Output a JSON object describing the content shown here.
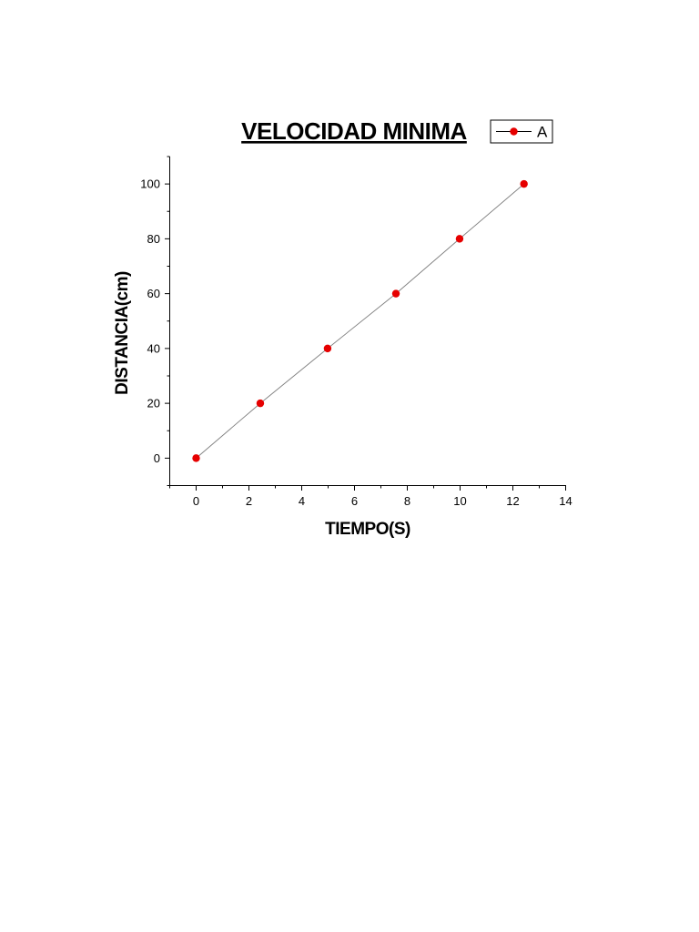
{
  "chart_data": {
    "type": "line",
    "title": "VELOCIDAD MINIMA",
    "xlabel": "TIEMPO(S)",
    "ylabel": "DISTANCIA(cm)",
    "xlim": [
      -1,
      14
    ],
    "ylim": [
      -10,
      110
    ],
    "x_ticks": [
      "0",
      "2",
      "4",
      "6",
      "8",
      "10",
      "12",
      "14"
    ],
    "y_ticks": [
      "0",
      "20",
      "40",
      "60",
      "80",
      "100"
    ],
    "legend_position": "top-right",
    "series": [
      {
        "name": "A",
        "x": [
          0,
          2.43,
          4.98,
          7.57,
          9.98,
          12.42
        ],
        "y": [
          0,
          20,
          40,
          60,
          80,
          100
        ],
        "line_color": "#7f7f7f",
        "marker_color": "#e60000"
      }
    ]
  }
}
